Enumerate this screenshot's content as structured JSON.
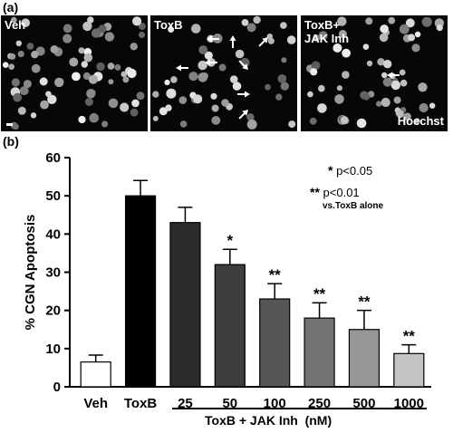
{
  "figure": {
    "panel_a_letter": "(a)",
    "panel_b_letter": "(b)",
    "micrographs": [
      {
        "label": "Veh",
        "label2": "",
        "corner_label": "",
        "scale_bar": true,
        "arrow_count": 0
      },
      {
        "label": "ToxB",
        "label2": "",
        "corner_label": "",
        "scale_bar": false,
        "arrow_count": 8
      },
      {
        "label": "ToxB+",
        "label2": "JAK Inh",
        "corner_label": "Hoechst",
        "scale_bar": false,
        "arrow_count": 1
      }
    ],
    "significance_legend": {
      "star1": "*",
      "text1": "p<0.05",
      "star2": "**",
      "text2": "p<0.01",
      "text3": "vs.ToxB alone"
    },
    "group_label": "ToxB + JAK Inh  (nM)"
  },
  "chart_data": {
    "type": "bar",
    "categories": [
      "Veh",
      "ToxB",
      "25",
      "50",
      "100",
      "250",
      "500",
      "1000"
    ],
    "values": [
      6.5,
      50,
      43,
      32,
      23,
      18,
      15,
      8.7
    ],
    "errors": [
      1.8,
      4,
      4,
      4,
      4,
      4,
      5,
      2.3
    ],
    "significance": [
      "",
      "",
      "",
      "*",
      "**",
      "**",
      "**",
      "**"
    ],
    "bar_colors": [
      "#ffffff",
      "#000000",
      "#2b2b2b",
      "#3d3d3d",
      "#555555",
      "#727272",
      "#969696",
      "#c4c4c4"
    ],
    "ylabel": "% CGN Apoptosis",
    "xlabel": "",
    "ylim": [
      0,
      60
    ],
    "yticks": [
      "0",
      "10",
      "20",
      "30",
      "40",
      "50",
      "60"
    ],
    "grid": false
  }
}
